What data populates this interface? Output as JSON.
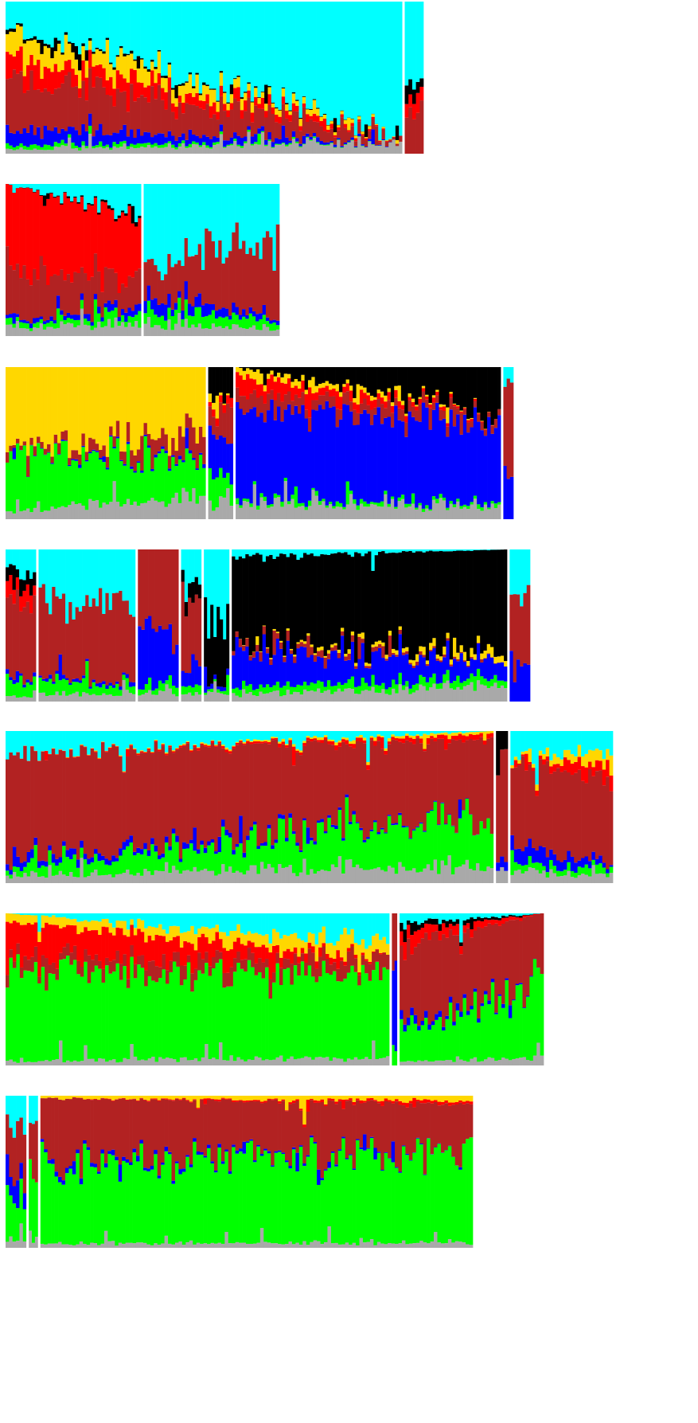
{
  "palette": {
    "cyan": "#00ffff",
    "red": "#ff0000",
    "brown": "#b22222",
    "gold": "#ffd700",
    "green": "#00ff00",
    "blue": "#0000ff",
    "black": "#000000",
    "gray": "#a9a9a9"
  },
  "chart_data": {
    "type": "bar",
    "stacked": true,
    "normalized": true,
    "axes_shown": false,
    "grid": false,
    "legend": "none",
    "stack_order_bottom_to_top": [
      "gray",
      "green",
      "blue",
      "brown",
      "red",
      "gold",
      "black",
      "cyan"
    ],
    "panels": [
      {
        "samples": 120,
        "groups": [
          {
            "share": 0.955,
            "start": {
              "gray": 0.03,
              "green": 0.03,
              "blue": 0.1,
              "brown": 0.35,
              "red": 0.15,
              "gold": 0.15,
              "black": 0.02,
              "cyan": 0.17
            },
            "end": {
              "gray": 0.08,
              "green": 0.0,
              "blue": 0.0,
              "brown": 0.02,
              "red": 0.0,
              "gold": 0.0,
              "black": 0.0,
              "cyan": 0.9
            }
          },
          {
            "share": 0.045,
            "start": {
              "gray": 0.0,
              "green": 0.0,
              "blue": 0.0,
              "brown": 0.3,
              "red": 0.1,
              "gold": 0.0,
              "black": 0.1,
              "cyan": 0.5
            },
            "end": {
              "gray": 0.0,
              "green": 0.0,
              "blue": 0.0,
              "brown": 0.3,
              "red": 0.1,
              "gold": 0.0,
              "black": 0.1,
              "cyan": 0.5
            }
          }
        ]
      },
      {
        "samples": 80,
        "groups": [
          {
            "share": 0.5,
            "start": {
              "gray": 0.05,
              "green": 0.03,
              "blue": 0.02,
              "brown": 0.3,
              "red": 0.6,
              "gold": 0.0,
              "black": 0.0,
              "cyan": 0.0
            },
            "end": {
              "gray": 0.08,
              "green": 0.05,
              "blue": 0.05,
              "brown": 0.2,
              "red": 0.4,
              "gold": 0.0,
              "black": 0.02,
              "cyan": 0.2
            }
          },
          {
            "share": 0.5,
            "start": {
              "gray": 0.08,
              "green": 0.1,
              "blue": 0.1,
              "brown": 0.2,
              "red": 0.0,
              "gold": 0.0,
              "black": 0.0,
              "cyan": 0.52
            },
            "end": {
              "gray": 0.05,
              "green": 0.05,
              "blue": 0.02,
              "brown": 0.5,
              "red": 0.0,
              "gold": 0.0,
              "black": 0.0,
              "cyan": 0.38
            }
          }
        ]
      },
      {
        "samples": 145,
        "groups": [
          {
            "share": 0.4,
            "start": {
              "gray": 0.05,
              "green": 0.4,
              "blue": 0.0,
              "brown": 0.02,
              "red": 0.0,
              "gold": 0.53,
              "black": 0.0,
              "cyan": 0.0
            },
            "end": {
              "gray": 0.15,
              "green": 0.25,
              "blue": 0.02,
              "brown": 0.15,
              "red": 0.0,
              "gold": 0.43,
              "black": 0.0,
              "cyan": 0.0
            }
          },
          {
            "share": 0.05,
            "start": {
              "gray": 0.1,
              "green": 0.2,
              "blue": 0.3,
              "brown": 0.1,
              "red": 0.05,
              "gold": 0.05,
              "black": 0.2,
              "cyan": 0.0
            },
            "end": {
              "gray": 0.15,
              "green": 0.1,
              "blue": 0.25,
              "brown": 0.2,
              "red": 0.05,
              "gold": 0.0,
              "black": 0.25,
              "cyan": 0.0
            }
          },
          {
            "share": 0.53,
            "start": {
              "gray": 0.1,
              "green": 0.02,
              "blue": 0.63,
              "brown": 0.1,
              "red": 0.1,
              "gold": 0.05,
              "black": 0.0,
              "cyan": 0.0
            },
            "end": {
              "gray": 0.08,
              "green": 0.02,
              "blue": 0.55,
              "brown": 0.05,
              "red": 0.0,
              "gold": 0.0,
              "black": 0.3,
              "cyan": 0.0
            }
          },
          {
            "share": 0.02,
            "start": {
              "gray": 0.0,
              "green": 0.0,
              "blue": 0.3,
              "brown": 0.6,
              "red": 0.0,
              "gold": 0.0,
              "black": 0.0,
              "cyan": 0.1
            },
            "end": {
              "gray": 0.0,
              "green": 0.0,
              "blue": 0.3,
              "brown": 0.6,
              "red": 0.0,
              "gold": 0.0,
              "black": 0.0,
              "cyan": 0.1
            }
          }
        ]
      },
      {
        "samples": 150,
        "groups": [
          {
            "share": 0.06,
            "start": {
              "gray": 0.03,
              "green": 0.1,
              "blue": 0.02,
              "brown": 0.55,
              "red": 0.1,
              "gold": 0.0,
              "black": 0.1,
              "cyan": 0.1
            },
            "end": {
              "gray": 0.03,
              "green": 0.1,
              "blue": 0.02,
              "brown": 0.45,
              "red": 0.1,
              "gold": 0.0,
              "black": 0.1,
              "cyan": 0.2
            }
          },
          {
            "share": 0.19,
            "start": {
              "gray": 0.05,
              "green": 0.1,
              "blue": 0.02,
              "brown": 0.5,
              "red": 0.0,
              "gold": 0.0,
              "black": 0.0,
              "cyan": 0.33
            },
            "end": {
              "gray": 0.05,
              "green": 0.05,
              "blue": 0.02,
              "brown": 0.5,
              "red": 0.0,
              "gold": 0.0,
              "black": 0.0,
              "cyan": 0.38
            }
          },
          {
            "share": 0.08,
            "start": {
              "gray": 0.05,
              "green": 0.05,
              "blue": 0.4,
              "brown": 0.5,
              "red": 0.0,
              "gold": 0.0,
              "black": 0.0,
              "cyan": 0.0
            },
            "end": {
              "gray": 0.05,
              "green": 0.05,
              "blue": 0.35,
              "brown": 0.55,
              "red": 0.0,
              "gold": 0.0,
              "black": 0.0,
              "cyan": 0.0
            }
          },
          {
            "share": 0.04,
            "start": {
              "gray": 0.05,
              "green": 0.05,
              "blue": 0.1,
              "brown": 0.5,
              "red": 0.0,
              "gold": 0.0,
              "black": 0.1,
              "cyan": 0.2
            },
            "end": {
              "gray": 0.05,
              "green": 0.05,
              "blue": 0.1,
              "brown": 0.5,
              "red": 0.0,
              "gold": 0.0,
              "black": 0.1,
              "cyan": 0.2
            }
          },
          {
            "share": 0.05,
            "start": {
              "gray": 0.05,
              "green": 0.02,
              "blue": 0.03,
              "brown": 0.0,
              "red": 0.0,
              "gold": 0.0,
              "black": 0.4,
              "cyan": 0.5
            },
            "end": {
              "gray": 0.05,
              "green": 0.02,
              "blue": 0.03,
              "brown": 0.0,
              "red": 0.0,
              "gold": 0.0,
              "black": 0.4,
              "cyan": 0.5
            }
          },
          {
            "share": 0.54,
            "start": {
              "gray": 0.05,
              "green": 0.05,
              "blue": 0.25,
              "brown": 0.05,
              "red": 0.0,
              "gold": 0.0,
              "black": 0.55,
              "cyan": 0.05
            },
            "end": {
              "gray": 0.1,
              "green": 0.05,
              "blue": 0.1,
              "brown": 0.0,
              "red": 0.0,
              "gold": 0.05,
              "black": 0.7,
              "cyan": 0.0
            }
          },
          {
            "share": 0.04,
            "start": {
              "gray": 0.0,
              "green": 0.0,
              "blue": 0.2,
              "brown": 0.5,
              "red": 0.0,
              "gold": 0.0,
              "black": 0.0,
              "cyan": 0.3
            },
            "end": {
              "gray": 0.0,
              "green": 0.0,
              "blue": 0.2,
              "brown": 0.5,
              "red": 0.0,
              "gold": 0.0,
              "black": 0.0,
              "cyan": 0.3
            }
          }
        ]
      },
      {
        "samples": 170,
        "groups": [
          {
            "share": 0.81,
            "start": {
              "gray": 0.05,
              "green": 0.05,
              "blue": 0.05,
              "brown": 0.7,
              "red": 0.0,
              "gold": 0.0,
              "black": 0.0,
              "cyan": 0.15
            },
            "end": {
              "gray": 0.12,
              "green": 0.33,
              "blue": 0.0,
              "brown": 0.5,
              "red": 0.03,
              "gold": 0.02,
              "black": 0.0,
              "cyan": 0.0
            }
          },
          {
            "share": 0.02,
            "start": {
              "gray": 0.1,
              "green": 0.0,
              "blue": 0.05,
              "brown": 0.65,
              "red": 0.0,
              "gold": 0.0,
              "black": 0.2,
              "cyan": 0.0
            },
            "end": {
              "gray": 0.1,
              "green": 0.0,
              "blue": 0.05,
              "brown": 0.65,
              "red": 0.0,
              "gold": 0.0,
              "black": 0.2,
              "cyan": 0.0
            }
          },
          {
            "share": 0.17,
            "start": {
              "gray": 0.08,
              "green": 0.05,
              "blue": 0.15,
              "brown": 0.55,
              "red": 0.0,
              "gold": 0.02,
              "black": 0.0,
              "cyan": 0.15
            },
            "end": {
              "gray": 0.05,
              "green": 0.05,
              "blue": 0.02,
              "brown": 0.53,
              "red": 0.1,
              "gold": 0.1,
              "black": 0.0,
              "cyan": 0.15
            }
          }
        ]
      },
      {
        "samples": 150,
        "groups": [
          {
            "share": 0.72,
            "start": {
              "gray": 0.03,
              "green": 0.6,
              "blue": 0.0,
              "brown": 0.07,
              "red": 0.25,
              "gold": 0.05,
              "black": 0.0,
              "cyan": 0.0
            },
            "end": {
              "gray": 0.05,
              "green": 0.55,
              "blue": 0.0,
              "brown": 0.1,
              "red": 0.0,
              "gold": 0.1,
              "black": 0.0,
              "cyan": 0.2
            }
          },
          {
            "share": 0.01,
            "start": {
              "gray": 0.0,
              "green": 0.1,
              "blue": 0.6,
              "brown": 0.3,
              "red": 0.0,
              "gold": 0.0,
              "black": 0.0,
              "cyan": 0.0
            },
            "end": {
              "gray": 0.0,
              "green": 0.1,
              "blue": 0.6,
              "brown": 0.3,
              "red": 0.0,
              "gold": 0.0,
              "black": 0.0,
              "cyan": 0.0
            }
          },
          {
            "share": 0.27,
            "start": {
              "gray": 0.03,
              "green": 0.2,
              "blue": 0.05,
              "brown": 0.5,
              "red": 0.1,
              "gold": 0.0,
              "black": 0.05,
              "cyan": 0.07
            },
            "end": {
              "gray": 0.05,
              "green": 0.5,
              "blue": 0.0,
              "brown": 0.45,
              "red": 0.0,
              "gold": 0.0,
              "black": 0.0,
              "cyan": 0.0
            }
          }
        ]
      },
      {
        "samples": 130,
        "groups": [
          {
            "share": 0.045,
            "start": {
              "gray": 0.05,
              "green": 0.3,
              "blue": 0.15,
              "brown": 0.3,
              "red": 0.0,
              "gold": 0.0,
              "black": 0.0,
              "cyan": 0.2
            },
            "end": {
              "gray": 0.05,
              "green": 0.3,
              "blue": 0.15,
              "brown": 0.3,
              "red": 0.0,
              "gold": 0.0,
              "black": 0.0,
              "cyan": 0.2
            }
          },
          {
            "share": 0.02,
            "start": {
              "gray": 0.05,
              "green": 0.45,
              "blue": 0.0,
              "brown": 0.3,
              "red": 0.0,
              "gold": 0.0,
              "black": 0.0,
              "cyan": 0.2
            },
            "end": {
              "gray": 0.05,
              "green": 0.45,
              "blue": 0.0,
              "brown": 0.3,
              "red": 0.0,
              "gold": 0.0,
              "black": 0.0,
              "cyan": 0.2
            }
          },
          {
            "share": 0.935,
            "start": {
              "gray": 0.03,
              "green": 0.5,
              "blue": 0.03,
              "brown": 0.42,
              "red": 0.0,
              "gold": 0.02,
              "black": 0.0,
              "cyan": 0.0
            },
            "end": {
              "gray": 0.03,
              "green": 0.62,
              "blue": 0.0,
              "brown": 0.3,
              "red": 0.02,
              "gold": 0.03,
              "black": 0.0,
              "cyan": 0.0
            }
          }
        ]
      }
    ]
  }
}
